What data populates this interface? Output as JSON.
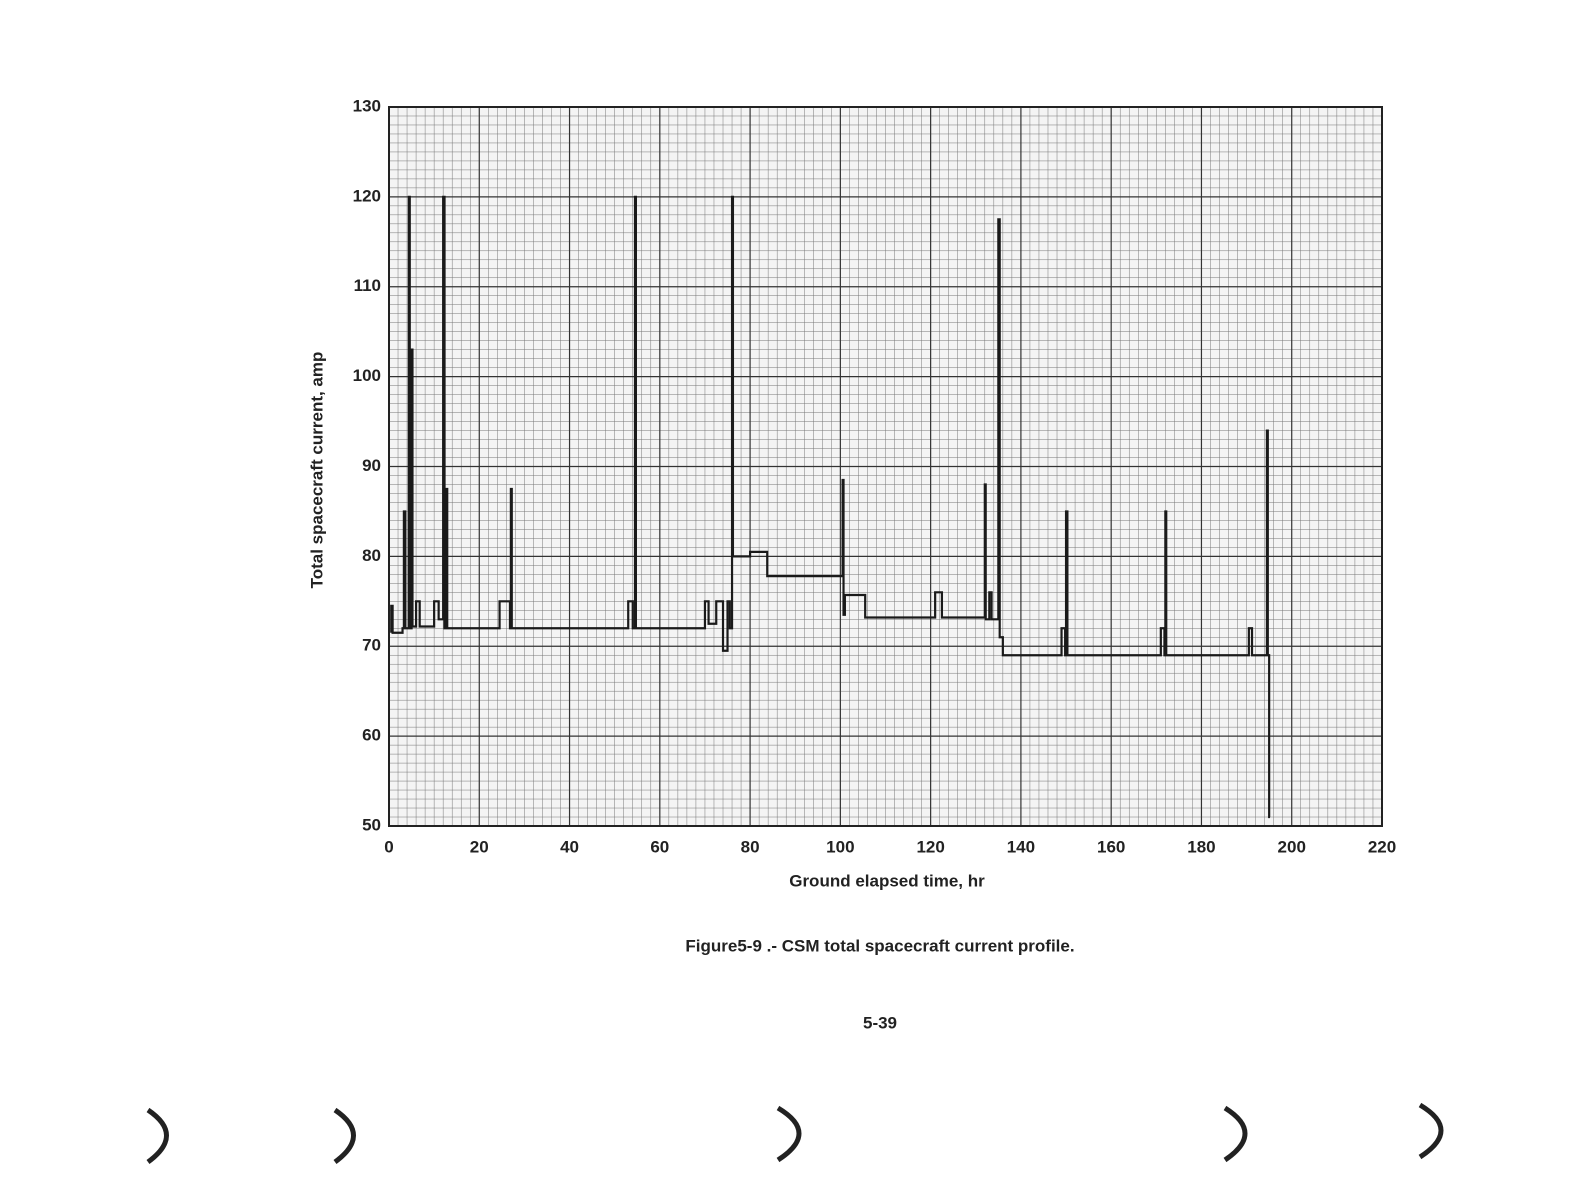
{
  "chart_data": {
    "type": "line",
    "x_label": "Ground elapsed time, hr",
    "y_label": "Total spacecraft current, amp",
    "caption": "Figure5-9 .- CSM total spacecraft current profile.",
    "page_number": "5-39",
    "xlim": [
      0,
      220
    ],
    "xticks": [
      0,
      20,
      40,
      60,
      80,
      100,
      120,
      140,
      160,
      180,
      200,
      220
    ],
    "ylim": [
      50,
      130
    ],
    "yticks": [
      50,
      60,
      70,
      80,
      90,
      100,
      110,
      120,
      130
    ],
    "grid": true,
    "color": "#1a1a1a",
    "x": [
      0.5,
      0.5,
      0.8,
      0.8,
      3,
      3,
      3.3,
      3.3,
      3.6,
      3.6,
      4.4,
      4.4,
      4.6,
      4.6,
      5,
      5,
      5.2,
      5.2,
      6,
      6,
      6.8,
      6.8,
      10,
      10,
      11,
      11,
      12,
      12,
      12.3,
      12.3,
      12.6,
      12.6,
      12.9,
      12.9,
      24.5,
      24.5,
      26.8,
      26.8,
      27,
      27,
      27.2,
      27.2,
      53,
      53,
      54,
      54,
      54.5,
      54.5,
      54.7,
      54.7,
      70,
      70,
      70.8,
      70.8,
      72.5,
      72.5,
      74,
      74,
      75,
      75,
      75.5,
      75.5,
      76,
      76,
      76.2,
      76.2,
      80,
      80,
      83.8,
      83.8,
      100.5,
      100.5,
      100.7,
      100.7,
      101,
      101,
      105.5,
      105.5,
      121,
      121,
      122.5,
      122.5,
      132,
      132,
      132.2,
      132.2,
      133,
      133,
      133.5,
      133.5,
      135,
      135,
      135.3,
      135.3,
      136,
      136,
      149,
      149,
      149.8,
      149.8,
      150,
      150,
      150.3,
      150.3,
      171,
      171,
      171.8,
      171.8,
      172,
      172,
      172.2,
      172.2,
      190.5,
      190.5,
      191.2,
      191.2,
      194.5,
      194.5,
      194.7,
      194.7,
      195,
      195,
      195.2
    ],
    "y": [
      71.5,
      74.5,
      74.5,
      71.5,
      71.5,
      72,
      72,
      85,
      85,
      72,
      72,
      120,
      120,
      72,
      72,
      103,
      103,
      72.2,
      72.2,
      75,
      75,
      72.2,
      72.2,
      75,
      75,
      73,
      73,
      120,
      120,
      72,
      72,
      87.5,
      87.5,
      72,
      72,
      75,
      75,
      72,
      72,
      87.5,
      87.5,
      72,
      72,
      75,
      75,
      72,
      72,
      120,
      120,
      72,
      72,
      75,
      75,
      72.5,
      72.5,
      75,
      75,
      69.5,
      69.5,
      75,
      75,
      72,
      72,
      120,
      120,
      80,
      80,
      80.5,
      80.5,
      77.8,
      77.8,
      88.5,
      88.5,
      73.5,
      73.5,
      75.7,
      75.7,
      73.2,
      73.2,
      76,
      76,
      73.2,
      73.2,
      88,
      88,
      73,
      73,
      76,
      76,
      73,
      73,
      117.5,
      117.5,
      71,
      71,
      69,
      69,
      72,
      72,
      69,
      69,
      85,
      85,
      69,
      69,
      72,
      72,
      69,
      69,
      85,
      85,
      69,
      69,
      72,
      72,
      69,
      69,
      94,
      94,
      69,
      69,
      51,
      51
    ]
  }
}
